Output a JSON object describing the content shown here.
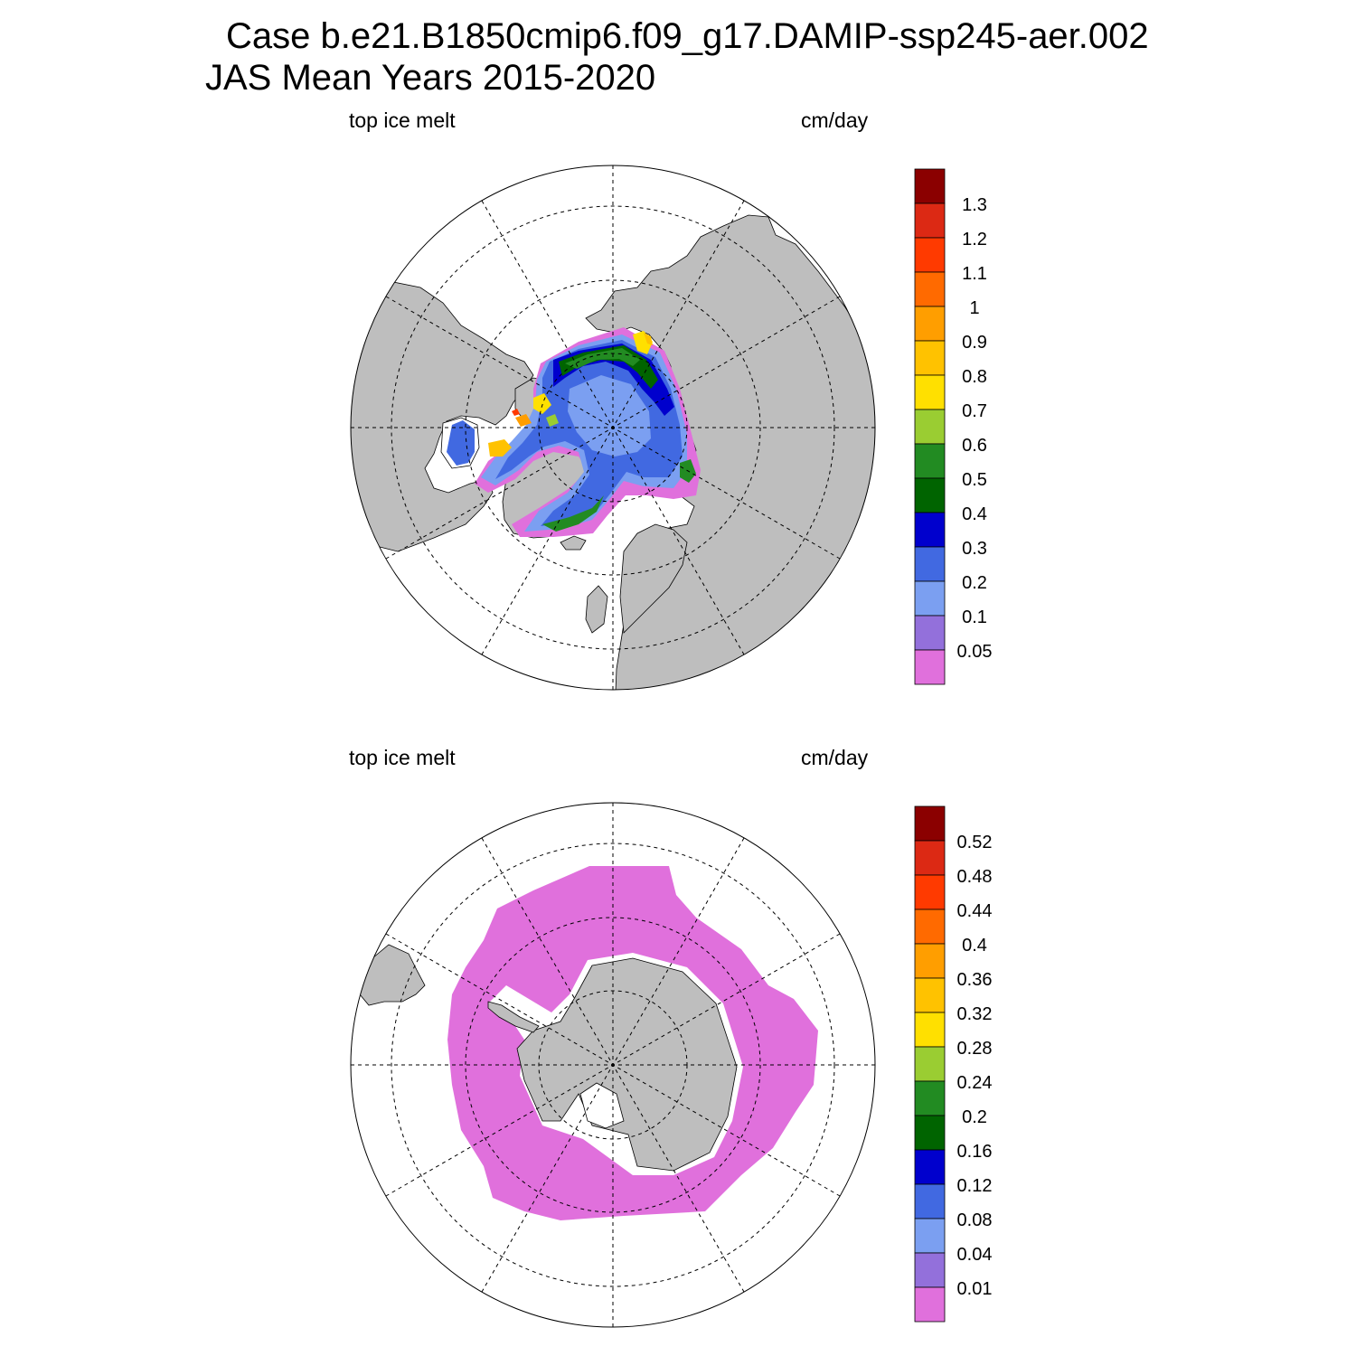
{
  "title": {
    "line1": "Case b.e21.B1850cmip6.f09_g17.DAMIP-ssp245-aer.002",
    "line2": "JAS Mean   Years 2015-2020"
  },
  "colors": {
    "land": "#bebebe",
    "ocean": "#ffffff",
    "scale": [
      "#e070dc",
      "#9370db",
      "#7b9ff1",
      "#4169e1",
      "#0000cd",
      "#006400",
      "#228b22",
      "#9acd32",
      "#ffe000",
      "#ffc200",
      "#ff9e00",
      "#ff6a00",
      "#ff3a00",
      "#dc2914",
      "#8b0000"
    ]
  },
  "panels": [
    {
      "id": "arctic",
      "left_label": "top ice melt",
      "right_label": "cm/day",
      "hemisphere": "north",
      "colorbar_labels": [
        "1.3",
        "1.2",
        "1.1",
        "1",
        "0.9",
        "0.8",
        "0.7",
        "0.6",
        "0.5",
        "0.4",
        "0.3",
        "0.2",
        "0.1",
        "0.05"
      ]
    },
    {
      "id": "antarctic",
      "left_label": "top ice melt",
      "right_label": "cm/day",
      "hemisphere": "south",
      "colorbar_labels": [
        "0.52",
        "0.48",
        "0.44",
        "0.4",
        "0.36",
        "0.32",
        "0.28",
        "0.24",
        "0.2",
        "0.16",
        "0.12",
        "0.08",
        "0.04",
        "0.01"
      ]
    }
  ]
}
